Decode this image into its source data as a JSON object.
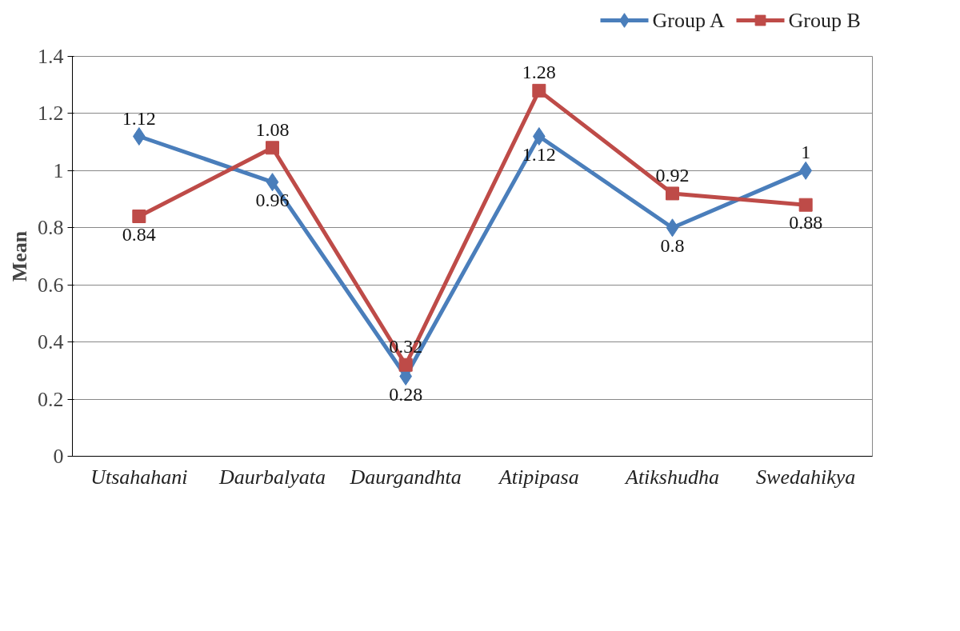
{
  "chart_data": {
    "type": "line",
    "ylabel": "Mean",
    "categories": [
      "Utsahahani",
      "Daurbalyata",
      "Daurgandhta",
      "Atipipasa",
      "Atikshudha",
      "Swedahikya"
    ],
    "series": [
      {
        "name": "Group A",
        "color": "#4a7ebb",
        "marker": "diamond",
        "values": [
          1.12,
          0.96,
          0.28,
          1.12,
          0.8,
          1
        ]
      },
      {
        "name": "Group B",
        "color": "#be4b48",
        "marker": "square",
        "values": [
          0.84,
          1.08,
          0.32,
          1.28,
          0.92,
          0.88
        ]
      }
    ],
    "ylim": [
      0,
      1.4
    ],
    "yticks": [
      0,
      0.2,
      0.4,
      0.6,
      0.8,
      1,
      1.2,
      1.4
    ],
    "grid": "y",
    "legend": "top right",
    "data_labels": true
  }
}
